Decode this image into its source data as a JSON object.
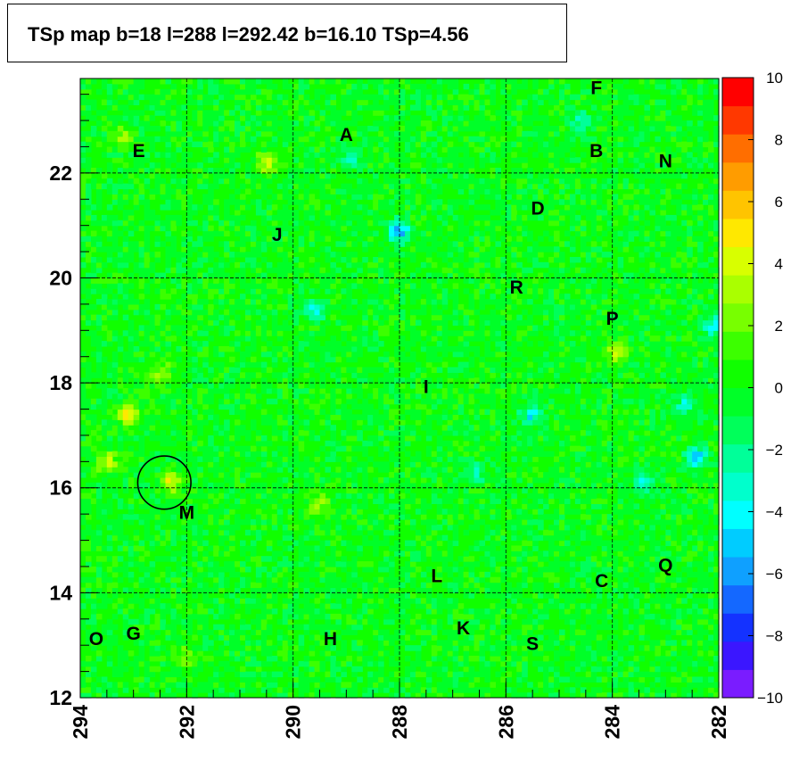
{
  "title": "TSp map b=18 l=288 l=292.42 b=16.10 TSp=4.56",
  "chart_data": {
    "type": "heatmap",
    "title": "TSp map b=18 l=288 l=292.42 b=16.10 TSp=4.56",
    "xlabel": "",
    "ylabel": "",
    "x_range": [
      294,
      282
    ],
    "y_range": [
      12,
      23.8
    ],
    "x_reversed": true,
    "x_ticks": [
      "294",
      "292",
      "290",
      "288",
      "286",
      "284",
      "282"
    ],
    "y_ticks": [
      "12",
      "14",
      "16",
      "18",
      "20",
      "22"
    ],
    "z_range": [
      -10,
      10
    ],
    "colorbar_ticks": [
      "10",
      "8",
      "6",
      "4",
      "2",
      "0",
      "−2",
      "−4",
      "−6",
      "−8",
      "−10"
    ],
    "colorbar_colors": [
      "#7a1cff",
      "#3b16ff",
      "#1432ff",
      "#1468ff",
      "#0fa0ff",
      "#00ccff",
      "#00ffff",
      "#00ffcc",
      "#00ff99",
      "#00ff5a",
      "#00ff28",
      "#10ff00",
      "#3cff00",
      "#78ff00",
      "#aaff00",
      "#d8ff00",
      "#ffe800",
      "#ffc400",
      "#ff9c00",
      "#ff6e00",
      "#ff3800",
      "#ff0000"
    ],
    "background_value": 0,
    "hot_spots": [
      {
        "l": 293.1,
        "b": 17.4,
        "value": 5.5
      },
      {
        "l": 293.5,
        "b": 16.5,
        "value": 3.5
      },
      {
        "l": 292.3,
        "b": 16.1,
        "value": 4.5
      },
      {
        "l": 289.5,
        "b": 15.7,
        "value": 3
      },
      {
        "l": 292.0,
        "b": 12.8,
        "value": 3
      },
      {
        "l": 293.2,
        "b": 22.7,
        "value": 3
      },
      {
        "l": 290.5,
        "b": 22.2,
        "value": 4
      },
      {
        "l": 283.9,
        "b": 18.6,
        "value": 4
      },
      {
        "l": 292.5,
        "b": 18.2,
        "value": 2.5
      }
    ],
    "cold_spots": [
      {
        "l": 288.0,
        "b": 20.9,
        "value": -6
      },
      {
        "l": 285.5,
        "b": 17.4,
        "value": -4
      },
      {
        "l": 289.6,
        "b": 19.4,
        "value": -3
      },
      {
        "l": 288.9,
        "b": 22.3,
        "value": -3
      },
      {
        "l": 283.4,
        "b": 16.1,
        "value": -4
      },
      {
        "l": 282.6,
        "b": 17.6,
        "value": -3
      },
      {
        "l": 286.6,
        "b": 16.3,
        "value": -2.5
      },
      {
        "l": 282.4,
        "b": 16.6,
        "value": -5
      },
      {
        "l": 282.1,
        "b": 19.1,
        "value": -4
      },
      {
        "l": 284.6,
        "b": 23.0,
        "value": -2.5
      }
    ],
    "source_circle": {
      "l": 292.42,
      "b": 16.1,
      "radius_deg": 0.5
    },
    "source_labels": [
      {
        "text": "A",
        "l": 289.0,
        "b": 22.7
      },
      {
        "text": "B",
        "l": 284.3,
        "b": 22.4
      },
      {
        "text": "C",
        "l": 284.2,
        "b": 14.2
      },
      {
        "text": "D",
        "l": 285.4,
        "b": 21.3
      },
      {
        "text": "E",
        "l": 292.9,
        "b": 22.4
      },
      {
        "text": "F",
        "l": 284.3,
        "b": 23.6
      },
      {
        "text": "G",
        "l": 293.0,
        "b": 13.2
      },
      {
        "text": "H",
        "l": 289.3,
        "b": 13.1
      },
      {
        "text": "I",
        "l": 287.5,
        "b": 17.9
      },
      {
        "text": "J",
        "l": 290.3,
        "b": 20.8
      },
      {
        "text": "K",
        "l": 286.8,
        "b": 13.3
      },
      {
        "text": "L",
        "l": 287.3,
        "b": 14.3
      },
      {
        "text": "M",
        "l": 292.0,
        "b": 15.5
      },
      {
        "text": "N",
        "l": 283.0,
        "b": 22.2
      },
      {
        "text": "O",
        "l": 293.7,
        "b": 13.1
      },
      {
        "text": "P",
        "l": 284.0,
        "b": 19.2
      },
      {
        "text": "Q",
        "l": 283.0,
        "b": 14.5
      },
      {
        "text": "R",
        "l": 285.8,
        "b": 19.8
      },
      {
        "text": "S",
        "l": 285.5,
        "b": 13.0
      }
    ],
    "grid": true
  }
}
